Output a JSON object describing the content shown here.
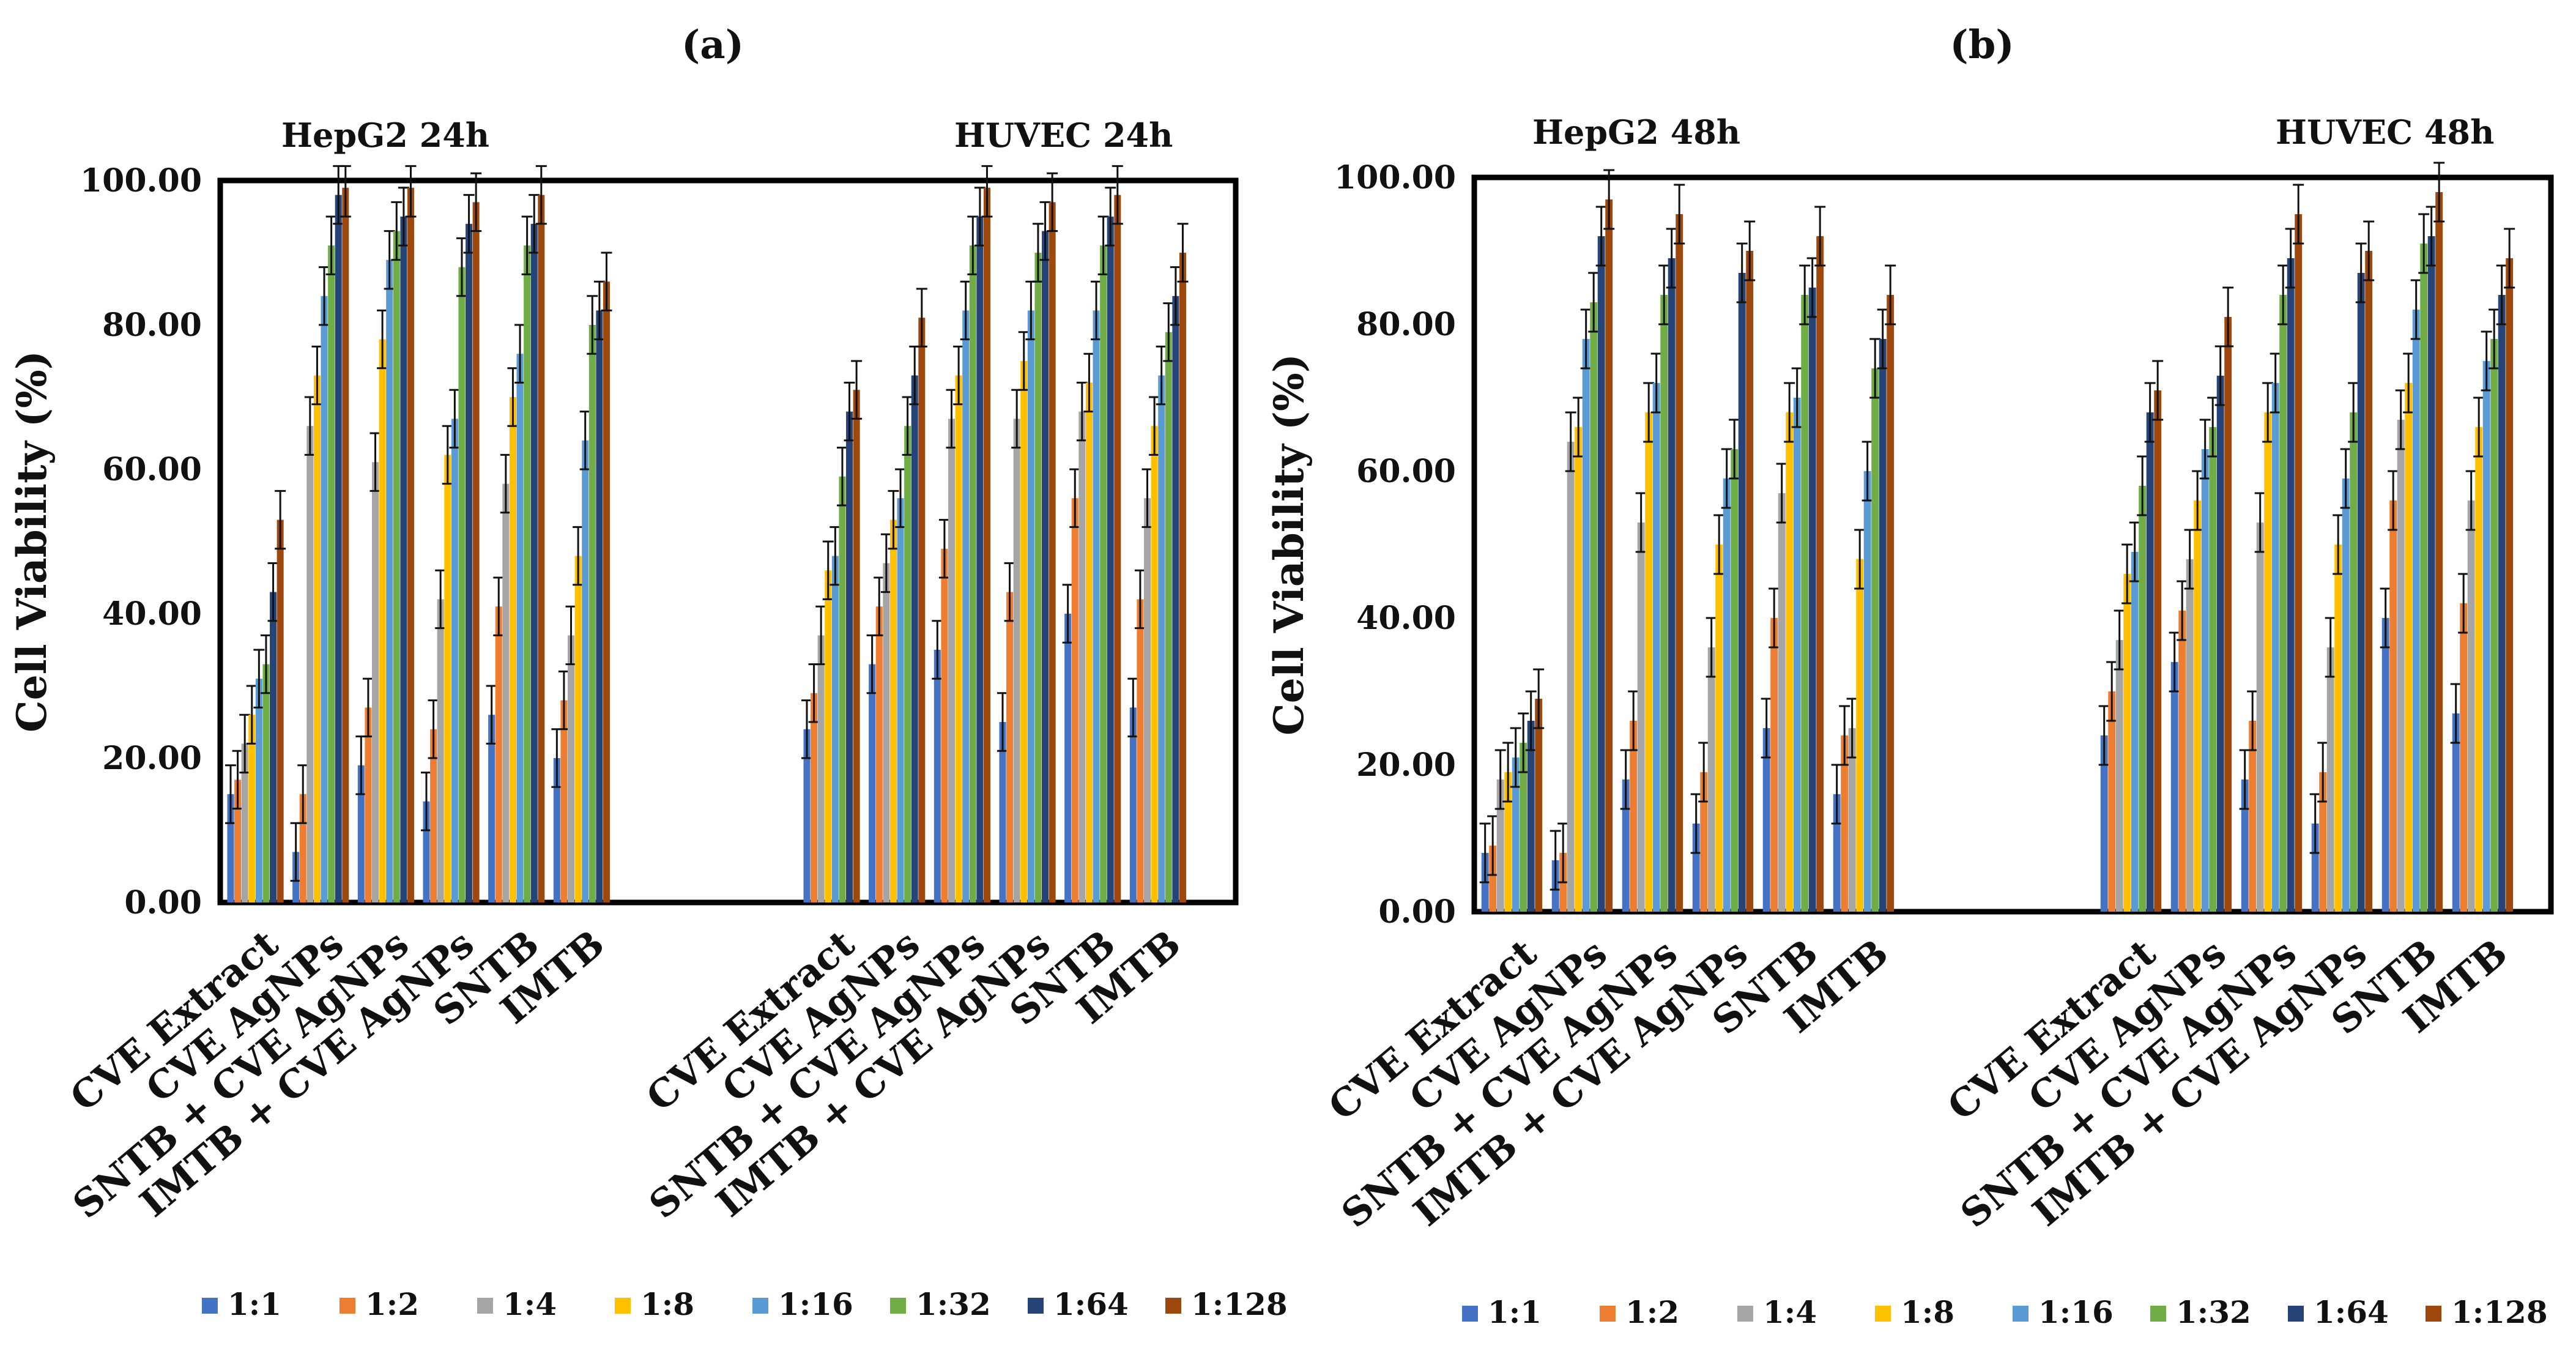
{
  "legend": {
    "entries": [
      "1:1",
      "1:2",
      "1:4",
      "1:8",
      "1:16",
      "1:32",
      "1:64",
      "1:128"
    ],
    "colors": [
      "#4472C4",
      "#ED7D31",
      "#A5A5A5",
      "#FFC000",
      "#5B9BD5",
      "#70AD47",
      "#264478",
      "#9E480E"
    ]
  },
  "chart_data": [
    {
      "type": "bar",
      "panel_label": "(a)",
      "ylabel": "Cell Viability (%)",
      "ylim": [
        0,
        100
      ],
      "yticks": [
        "0.00",
        "20.00",
        "40.00",
        "60.00",
        "80.00",
        "100.00"
      ],
      "group_titles": [
        "HepG2 24h",
        "HUVEC 24h"
      ],
      "groups": [
        {
          "title": "HepG2 24h",
          "categories": [
            "CVE Extract",
            "CVE AgNPs",
            "SNTB + CVE AgNPs",
            "IMTB + CVE AgNPs",
            "SNTB",
            "IMTB"
          ],
          "values": [
            [
              15,
              17,
              22,
              26,
              31,
              33,
              43,
              53
            ],
            [
              7,
              15,
              66,
              73,
              84,
              91,
              98,
              99
            ],
            [
              19,
              27,
              61,
              78,
              89,
              93,
              95,
              99
            ],
            [
              14,
              24,
              42,
              62,
              67,
              88,
              94,
              97
            ],
            [
              26,
              41,
              58,
              70,
              76,
              91,
              94,
              98
            ],
            [
              20,
              28,
              37,
              48,
              64,
              80,
              82,
              86
            ]
          ],
          "errors": [
            4,
            4,
            4,
            4,
            4,
            4,
            4,
            4
          ]
        },
        {
          "title": "HUVEC 24h",
          "categories": [
            "CVE Extract",
            "CVE AgNPs",
            "SNTB + CVE AgNPs",
            "IMTB + CVE AgNPs",
            "SNTB",
            "IMTB"
          ],
          "values": [
            [
              24,
              29,
              37,
              46,
              48,
              59,
              68,
              71
            ],
            [
              33,
              41,
              47,
              53,
              56,
              66,
              73,
              81
            ],
            [
              35,
              49,
              67,
              73,
              82,
              91,
              95,
              99
            ],
            [
              25,
              43,
              67,
              75,
              82,
              90,
              93,
              97
            ],
            [
              40,
              56,
              68,
              72,
              82,
              91,
              95,
              98
            ],
            [
              27,
              42,
              56,
              66,
              73,
              79,
              84,
              90
            ]
          ],
          "errors": [
            4,
            4,
            4,
            4,
            4,
            4,
            4,
            4
          ]
        }
      ]
    },
    {
      "type": "bar",
      "panel_label": "(b)",
      "ylabel": "Cell Viability (%)",
      "ylim": [
        0,
        100
      ],
      "yticks": [
        "0.00",
        "20.00",
        "40.00",
        "60.00",
        "80.00",
        "100.00"
      ],
      "group_titles": [
        "HepG2 48h",
        "HUVEC 48h"
      ],
      "groups": [
        {
          "title": "HepG2 48h",
          "categories": [
            "CVE Extract",
            "CVE AgNPs",
            "SNTB + CVE AgNPs",
            "IMTB + CVE AgNPs",
            "SNTB",
            "IMTB"
          ],
          "values": [
            [
              8,
              9,
              18,
              19,
              21,
              23,
              26,
              29
            ],
            [
              7,
              8,
              64,
              66,
              78,
              83,
              92,
              97
            ],
            [
              18,
              26,
              53,
              68,
              72,
              84,
              89,
              95
            ],
            [
              12,
              19,
              36,
              50,
              59,
              63,
              87,
              90
            ],
            [
              25,
              40,
              57,
              68,
              70,
              84,
              85,
              92
            ],
            [
              16,
              24,
              25,
              48,
              60,
              74,
              78,
              84
            ]
          ],
          "errors": [
            4,
            4,
            4,
            4,
            4,
            4,
            4,
            4
          ]
        },
        {
          "title": "HUVEC 48h",
          "categories": [
            "CVE Extract",
            "CVE AgNPs",
            "SNTB + CVE AgNPs",
            "IMTB + CVE AgNPs",
            "SNTB",
            "IMTB"
          ],
          "values": [
            [
              24,
              30,
              37,
              46,
              49,
              58,
              68,
              71
            ],
            [
              34,
              41,
              48,
              56,
              63,
              66,
              73,
              81
            ],
            [
              18,
              26,
              53,
              68,
              72,
              84,
              89,
              95
            ],
            [
              12,
              19,
              36,
              50,
              59,
              68,
              87,
              90
            ],
            [
              40,
              56,
              67,
              72,
              82,
              91,
              92,
              98
            ],
            [
              27,
              42,
              56,
              66,
              75,
              78,
              84,
              89
            ]
          ],
          "errors": [
            4,
            4,
            4,
            4,
            4,
            4,
            4,
            4
          ]
        }
      ]
    }
  ]
}
